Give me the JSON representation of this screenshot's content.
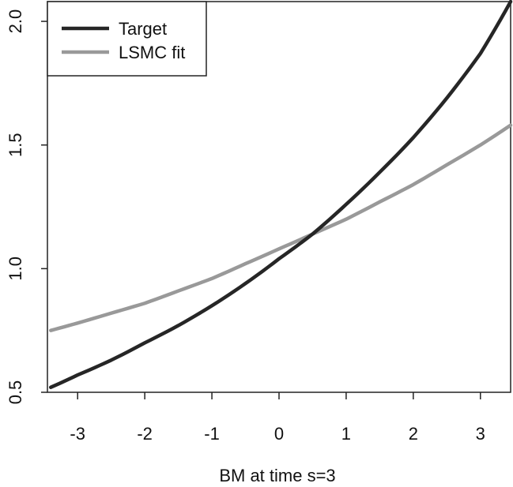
{
  "chart_data": {
    "type": "line",
    "title": "",
    "xlabel": "BM at time s=3",
    "ylabel": "",
    "xlim": [
      -3.45,
      3.45
    ],
    "ylim": [
      0.5,
      2.08
    ],
    "grid": false,
    "legend_position": "top-left",
    "x_ticks": [
      -3,
      -2,
      -1,
      0,
      1,
      2,
      3
    ],
    "x_tick_labels": [
      "-3",
      "-2",
      "-1",
      "0",
      "1",
      "2",
      "3"
    ],
    "y_ticks": [
      0.5,
      1.0,
      1.5,
      2.0
    ],
    "y_tick_labels": [
      "0.5",
      "1.0",
      "1.5",
      "2.0"
    ],
    "series": [
      {
        "name": "Target",
        "color": "#262626",
        "x": [
          -3.4,
          -3,
          -2.5,
          -2,
          -1.5,
          -1,
          -0.5,
          0,
          0.5,
          1,
          1.5,
          2,
          2.5,
          3,
          3.45
        ],
        "y": [
          0.52,
          0.57,
          0.63,
          0.7,
          0.77,
          0.85,
          0.94,
          1.04,
          1.14,
          1.26,
          1.39,
          1.53,
          1.69,
          1.87,
          2.08
        ]
      },
      {
        "name": "LSMC fit",
        "color": "#999999",
        "x": [
          -3.4,
          -3,
          -2.5,
          -2,
          -1.5,
          -1,
          -0.5,
          0,
          0.5,
          1,
          1.5,
          2,
          2.5,
          3,
          3.45
        ],
        "y": [
          0.75,
          0.78,
          0.82,
          0.86,
          0.91,
          0.96,
          1.02,
          1.08,
          1.14,
          1.2,
          1.27,
          1.34,
          1.42,
          1.5,
          1.58
        ]
      }
    ]
  }
}
